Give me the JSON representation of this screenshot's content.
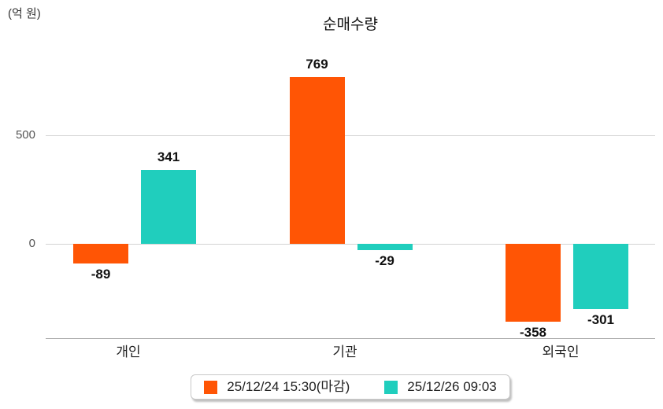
{
  "chart_data": {
    "type": "bar",
    "title": "순매수량",
    "unit_label": "(억 원)",
    "categories": [
      "개인",
      "기관",
      "외국인"
    ],
    "series": [
      {
        "name": "25/12/24 15:30(마감)",
        "color": "#FF5505",
        "values": [
          -89,
          769,
          -358
        ]
      },
      {
        "name": "25/12/26 09:03",
        "color": "#20CEBD",
        "values": [
          341,
          -29,
          -301
        ]
      }
    ],
    "yticks": [
      0,
      500
    ],
    "ylim": [
      -435,
      900
    ],
    "grid": true,
    "value_labels": true,
    "legend_position": "bottom",
    "colors": {
      "grid": "#d4d4d4",
      "axis": "#a6a6a6",
      "tick_label": "#555555",
      "value_label": "#111111",
      "category_label": "#222222",
      "background": "#ffffff"
    }
  }
}
